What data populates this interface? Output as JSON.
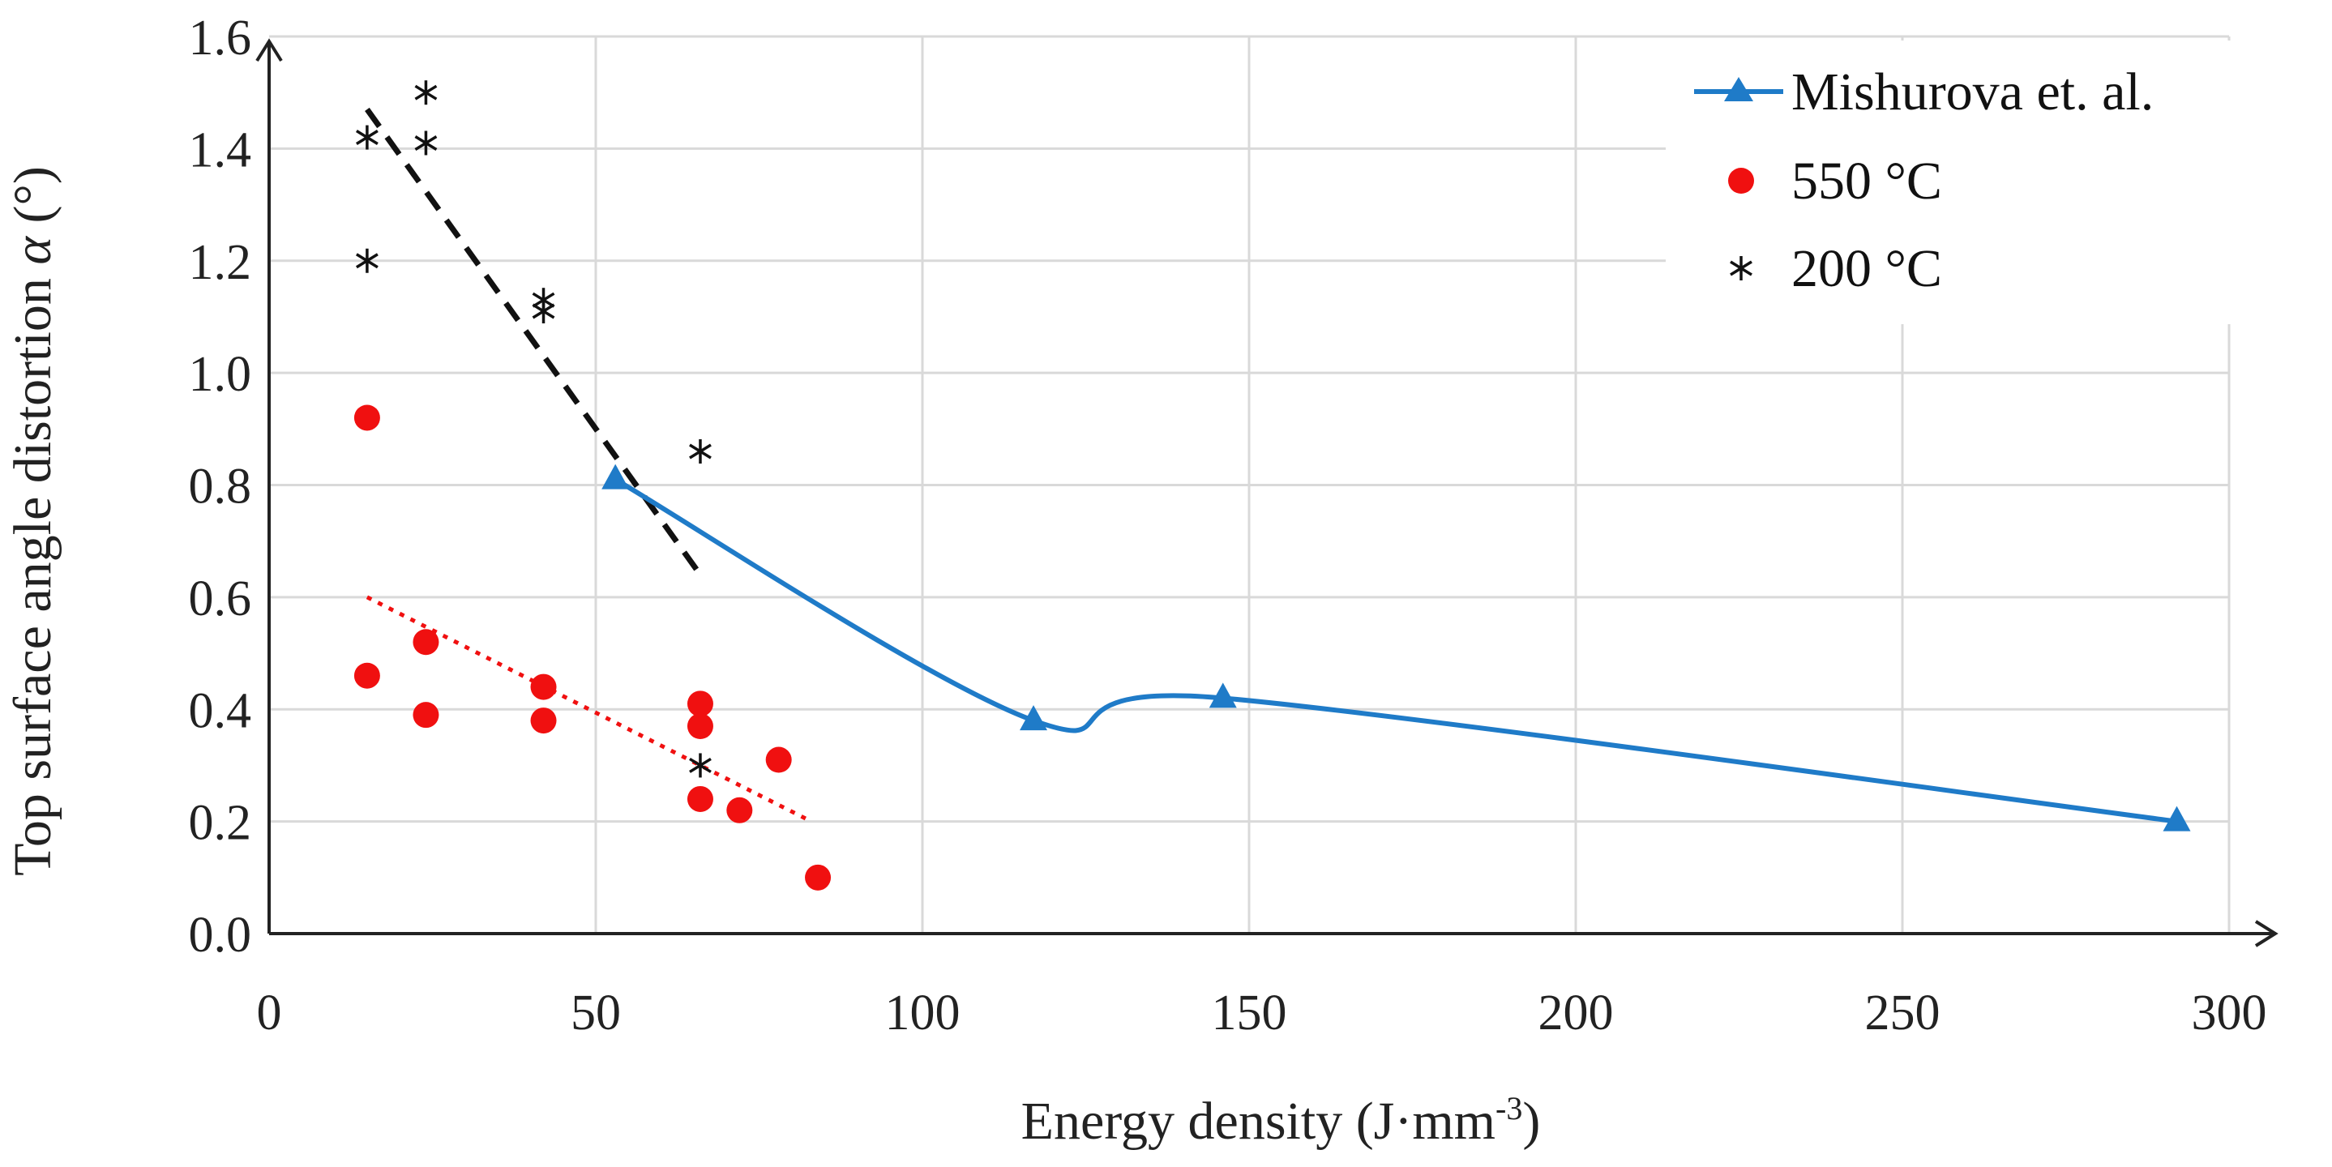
{
  "chart_data": {
    "type": "scatter",
    "title": "",
    "xlabel_main": "Energy density (J·mm",
    "xlabel_sup": "-3",
    "xlabel_end": ")",
    "ylabel_main": "Top surface angle distortion ",
    "ylabel_symbol": "α",
    "ylabel_unit": " (°)",
    "xlim": [
      0,
      300
    ],
    "ylim": [
      0,
      1.6
    ],
    "x_ticks": [
      0,
      50,
      100,
      150,
      200,
      250,
      300
    ],
    "y_ticks": [
      0.0,
      0.2,
      0.4,
      0.6,
      0.8,
      1.0,
      1.2,
      1.4,
      1.6
    ],
    "y_tick_labels": [
      "0.0",
      "0.2",
      "0.4",
      "0.6",
      "0.8",
      "1.0",
      "1.2",
      "1.4",
      "1.6"
    ],
    "grid": true,
    "legend_position": "top-right",
    "series": [
      {
        "name": "Mishurova et. al.",
        "kind": "smooth-line-triangle",
        "color": "#1f7bc8",
        "points": [
          [
            53,
            0.81
          ],
          [
            117,
            0.38
          ],
          [
            146,
            0.42
          ],
          [
            292,
            0.2
          ]
        ]
      },
      {
        "name": "550 °C",
        "kind": "scatter-circle",
        "color": "#f01010",
        "points": [
          [
            15,
            0.92
          ],
          [
            15,
            0.46
          ],
          [
            24,
            0.52
          ],
          [
            24,
            0.39
          ],
          [
            42,
            0.44
          ],
          [
            42,
            0.38
          ],
          [
            66,
            0.41
          ],
          [
            66,
            0.37
          ],
          [
            66,
            0.24
          ],
          [
            72,
            0.22
          ],
          [
            78,
            0.31
          ],
          [
            84,
            0.1
          ]
        ]
      },
      {
        "name": "200 °C",
        "kind": "scatter-star",
        "color": "#111111",
        "points": [
          [
            15,
            1.42
          ],
          [
            15,
            1.2
          ],
          [
            24,
            1.5
          ],
          [
            24,
            1.41
          ],
          [
            42,
            1.13
          ],
          [
            42,
            1.11
          ],
          [
            66,
            0.86
          ],
          [
            66,
            0.3
          ]
        ]
      }
    ],
    "trendlines": [
      {
        "series": "200 °C",
        "style": "dashed",
        "color": "#111111",
        "from": [
          15,
          1.47
        ],
        "to": [
          66,
          0.64
        ]
      },
      {
        "series": "550 °C",
        "style": "dotted",
        "color": "#f01010",
        "from": [
          15,
          0.6
        ],
        "to": [
          83,
          0.2
        ]
      }
    ]
  }
}
